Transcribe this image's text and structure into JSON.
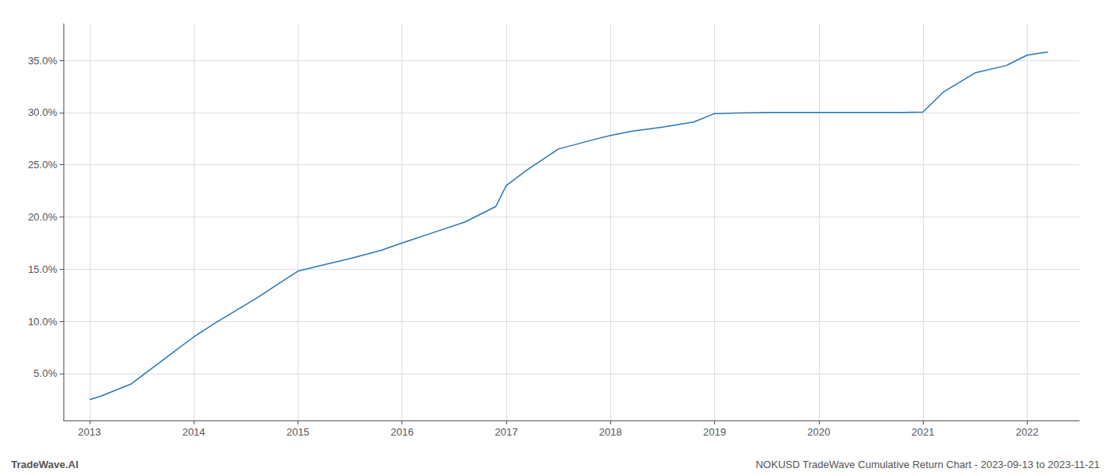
{
  "chart_data": {
    "type": "line",
    "x": [
      2013.0,
      2013.1,
      2013.2,
      2013.4,
      2013.6,
      2013.8,
      2014.0,
      2014.2,
      2014.4,
      2014.6,
      2014.8,
      2015.0,
      2015.2,
      2015.5,
      2015.8,
      2016.0,
      2016.3,
      2016.6,
      2016.9,
      2017.0,
      2017.2,
      2017.5,
      2017.8,
      2018.0,
      2018.2,
      2018.5,
      2018.8,
      2019.0,
      2019.2,
      2019.5,
      2019.8,
      2020.0,
      2020.2,
      2020.5,
      2020.8,
      2021.0,
      2021.2,
      2021.5,
      2021.8,
      2022.0,
      2022.2
    ],
    "values": [
      2.5,
      2.8,
      3.2,
      4.0,
      5.5,
      7.0,
      8.5,
      9.8,
      11.0,
      12.2,
      13.5,
      14.8,
      15.3,
      16.0,
      16.8,
      17.5,
      18.5,
      19.5,
      21.0,
      23.0,
      24.5,
      26.5,
      27.3,
      27.8,
      28.2,
      28.6,
      29.1,
      29.9,
      29.95,
      30.0,
      30.0,
      30.0,
      30.0,
      30.0,
      30.0,
      30.05,
      32.0,
      33.8,
      34.5,
      35.5,
      35.8
    ],
    "color": "#2878b5",
    "xlim": [
      2012.75,
      2022.5
    ],
    "ylim": [
      0.5,
      38.5
    ],
    "xticks": [
      2013,
      2014,
      2015,
      2016,
      2017,
      2018,
      2019,
      2020,
      2021,
      2022
    ],
    "yticks": [
      {
        "value": 5.0,
        "label": "5.0%"
      },
      {
        "value": 10.0,
        "label": "10.0%"
      },
      {
        "value": 15.0,
        "label": "15.0%"
      },
      {
        "value": 20.0,
        "label": "20.0%"
      },
      {
        "value": 25.0,
        "label": "25.0%"
      },
      {
        "value": 30.0,
        "label": "30.0%"
      },
      {
        "value": 35.0,
        "label": "35.0%"
      }
    ],
    "grid": true,
    "annotations": [
      "TradeWave.AI",
      "NOKUSD TradeWave Cumulative Return Chart - 2023-09-13 to 2023-11-21"
    ]
  }
}
